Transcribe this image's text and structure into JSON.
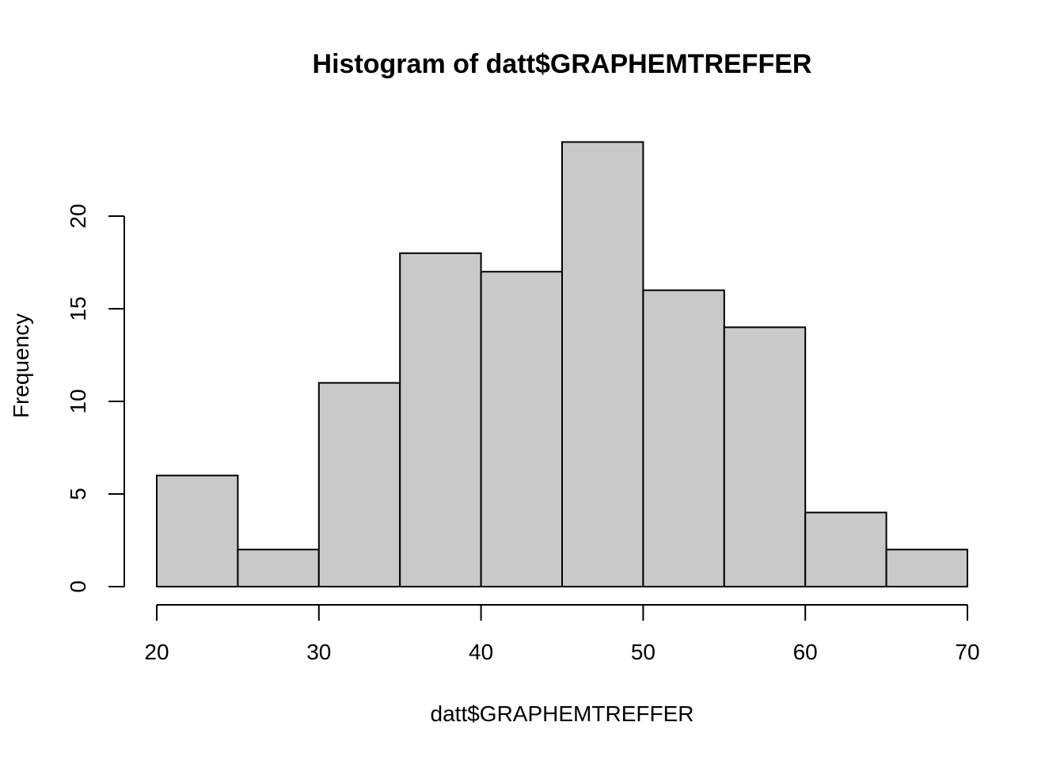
{
  "chart_data": {
    "type": "bar",
    "subtype": "histogram",
    "title": "Histogram of datt$GRAPHEMTREFFER",
    "xlabel": "datt$GRAPHEMTREFFER",
    "ylabel": "Frequency",
    "bins": [
      {
        "x0": 20,
        "x1": 25,
        "count": 6
      },
      {
        "x0": 25,
        "x1": 30,
        "count": 2
      },
      {
        "x0": 30,
        "x1": 35,
        "count": 11
      },
      {
        "x0": 35,
        "x1": 40,
        "count": 18
      },
      {
        "x0": 40,
        "x1": 45,
        "count": 17
      },
      {
        "x0": 45,
        "x1": 50,
        "count": 24
      },
      {
        "x0": 50,
        "x1": 55,
        "count": 16
      },
      {
        "x0": 55,
        "x1": 60,
        "count": 14
      },
      {
        "x0": 60,
        "x1": 65,
        "count": 4
      },
      {
        "x0": 65,
        "x1": 70,
        "count": 2
      }
    ],
    "xlim": [
      20,
      70
    ],
    "ylim": [
      0,
      24
    ],
    "x_ticks": [
      20,
      30,
      40,
      50,
      60,
      70
    ],
    "y_ticks": [
      0,
      5,
      10,
      15,
      20
    ],
    "bar_color": "#c9c9c9",
    "border_color": "#000000",
    "grid": false,
    "legend": "none"
  }
}
